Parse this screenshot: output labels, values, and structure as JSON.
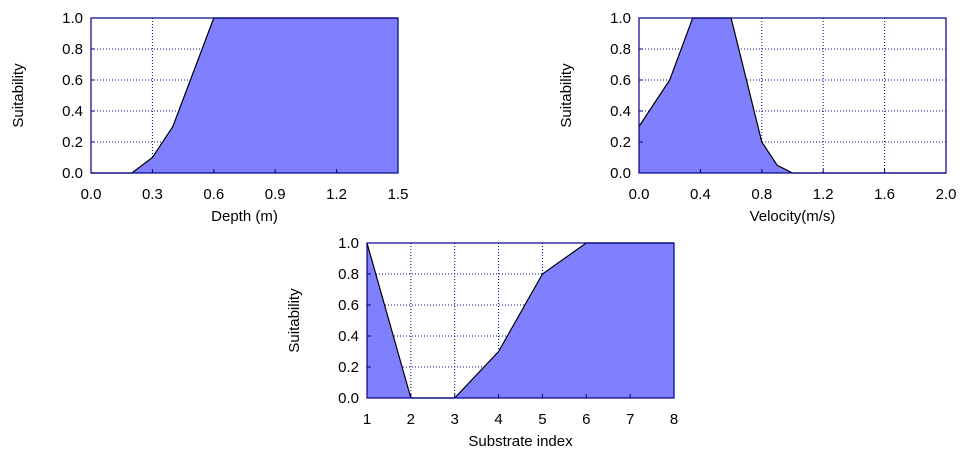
{
  "style": {
    "fill_color": "#8080ff",
    "grid_color": "#00008b",
    "frame_color": "#00008b",
    "line_color": "#000000"
  },
  "chart_data": [
    {
      "type": "area",
      "xlabel": "Depth (m)",
      "ylabel": "Suitability",
      "xlim": [
        0,
        1.5
      ],
      "ylim": [
        0,
        1
      ],
      "x_ticks": [
        "0.0",
        "0.3",
        "0.6",
        "0.9",
        "1.2",
        "1.5"
      ],
      "y_ticks": [
        "0.0",
        "0.2",
        "0.4",
        "0.6",
        "0.8",
        "1.0"
      ],
      "grid": true,
      "series": [
        {
          "x": [
            0,
            0.2,
            0.3,
            0.4,
            0.6,
            1.5
          ],
          "y": [
            0,
            0,
            0.1,
            0.3,
            1,
            1
          ]
        }
      ]
    },
    {
      "type": "area",
      "xlabel": "Velocity(m/s)",
      "ylabel": "Suitability",
      "xlim": [
        0,
        2
      ],
      "ylim": [
        0,
        1
      ],
      "x_ticks": [
        "0.0",
        "0.4",
        "0.8",
        "1.2",
        "1.6",
        "2.0"
      ],
      "y_ticks": [
        "0.0",
        "0.2",
        "0.4",
        "0.6",
        "0.8",
        "1.0"
      ],
      "grid": true,
      "series": [
        {
          "x": [
            0,
            0.2,
            0.35,
            0.6,
            0.8,
            0.9,
            1.0,
            2.0
          ],
          "y": [
            0.3,
            0.6,
            1,
            1,
            0.2,
            0.05,
            0,
            0
          ]
        }
      ]
    },
    {
      "type": "area",
      "xlabel": "Substrate index",
      "ylabel": "Suitability",
      "xlim": [
        1,
        8
      ],
      "ylim": [
        0,
        1
      ],
      "x_ticks": [
        "1",
        "2",
        "3",
        "4",
        "5",
        "6",
        "7",
        "8"
      ],
      "y_ticks": [
        "0.0",
        "0.2",
        "0.4",
        "0.6",
        "0.8",
        "1.0"
      ],
      "grid": true,
      "series": [
        {
          "x": [
            1,
            2,
            3,
            4,
            5,
            6,
            8
          ],
          "y": [
            1,
            0,
            0,
            0.3,
            0.8,
            1,
            1
          ]
        }
      ]
    }
  ]
}
